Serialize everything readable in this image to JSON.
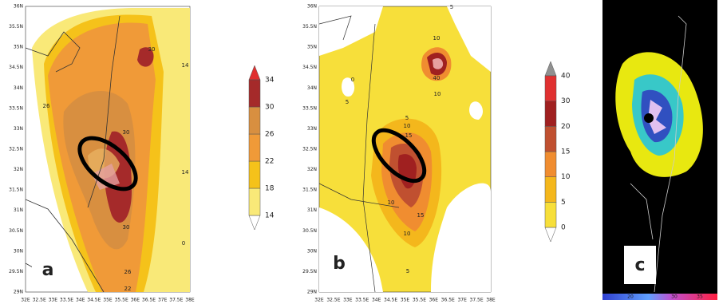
{
  "panels": [
    {
      "letter": "a",
      "lat_labels": [
        "36N",
        "35.5N",
        "35N",
        "34.5N",
        "34N",
        "33.5N",
        "33N",
        "32.5N",
        "32N",
        "31.5N",
        "31N",
        "30.5N",
        "30N",
        "29.5N",
        "29N"
      ],
      "lon_labels": [
        "32E",
        "32.5E",
        "33E",
        "33.5E",
        "34E",
        "34.5E",
        "35E",
        "35.5E",
        "36E",
        "36.5E",
        "37E",
        "37.5E",
        "38E"
      ],
      "colorbar": [
        14,
        18,
        22,
        26,
        30,
        34
      ],
      "contour_labels": [
        "30",
        "14",
        "26",
        "30",
        "14",
        "30",
        "26",
        "22",
        "0"
      ]
    },
    {
      "letter": "b",
      "lat_labels": [
        "36N",
        "35.5N",
        "35N",
        "34.5N",
        "34N",
        "33.5N",
        "33N",
        "32.5N",
        "32N",
        "31.5N",
        "31N",
        "30.5N",
        "30N",
        "29.5N",
        "29N"
      ],
      "lon_labels": [
        "32E",
        "32.5E",
        "33E",
        "33.5E",
        "34E",
        "34.5E",
        "35E",
        "35.5E",
        "36E",
        "36.5E",
        "37E",
        "37.5E",
        "38E"
      ],
      "colorbar": [
        0,
        5,
        10,
        15,
        20,
        30,
        40
      ],
      "contour_labels": [
        "5",
        "0",
        "5",
        "10",
        "40",
        "10",
        "5",
        "10",
        "15",
        "10",
        "15",
        "10",
        "5"
      ]
    },
    {
      "letter": "c",
      "colorbar_labels": [
        "20",
        "30",
        "35"
      ]
    }
  ]
}
